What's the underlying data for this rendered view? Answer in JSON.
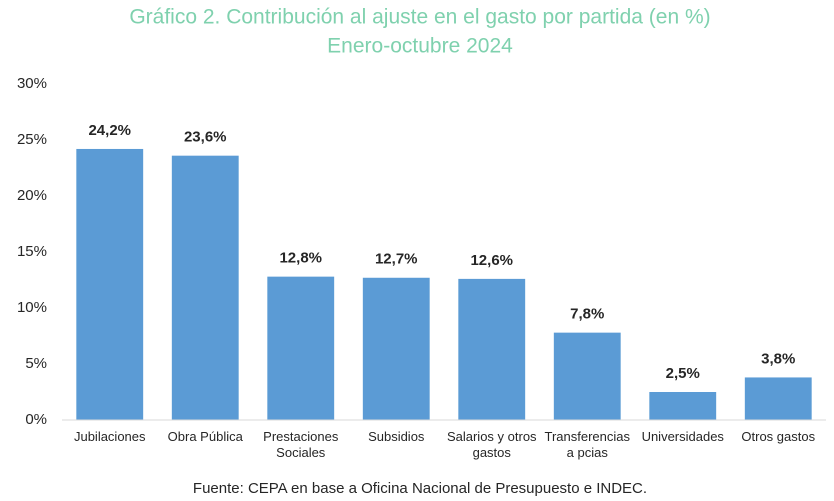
{
  "chart_data": {
    "type": "bar",
    "title": "Gráfico 2. Contribución al ajuste en el gasto por partida (en %)",
    "subtitle": "Enero-octubre 2024",
    "categories": [
      "Jubilaciones",
      "Obra Pública",
      "Prestaciones Sociales",
      "Subsidios",
      "Salarios y otros gastos",
      "Transferencias a pcias",
      "Universidades",
      "Otros gastos"
    ],
    "values": [
      24.2,
      23.6,
      12.8,
      12.7,
      12.6,
      7.8,
      2.5,
      3.8
    ],
    "value_labels": [
      "24,2%",
      "23,6%",
      "12,8%",
      "12,7%",
      "12,6%",
      "7,8%",
      "2,5%",
      "3,8%"
    ],
    "color": "#5b9bd5",
    "ylim": [
      0,
      30
    ],
    "yticks": [
      {
        "value": 0,
        "label": "0%"
      },
      {
        "value": 5,
        "label": "5%"
      },
      {
        "value": 10,
        "label": "10%"
      },
      {
        "value": 15,
        "label": "15%"
      },
      {
        "value": 20,
        "label": "20%"
      },
      {
        "value": 25,
        "label": "25%"
      },
      {
        "value": 30,
        "label": "30%"
      }
    ],
    "grid": false,
    "source": "Fuente: CEPA en base a Oficina Nacional de Presupuesto e INDEC."
  }
}
